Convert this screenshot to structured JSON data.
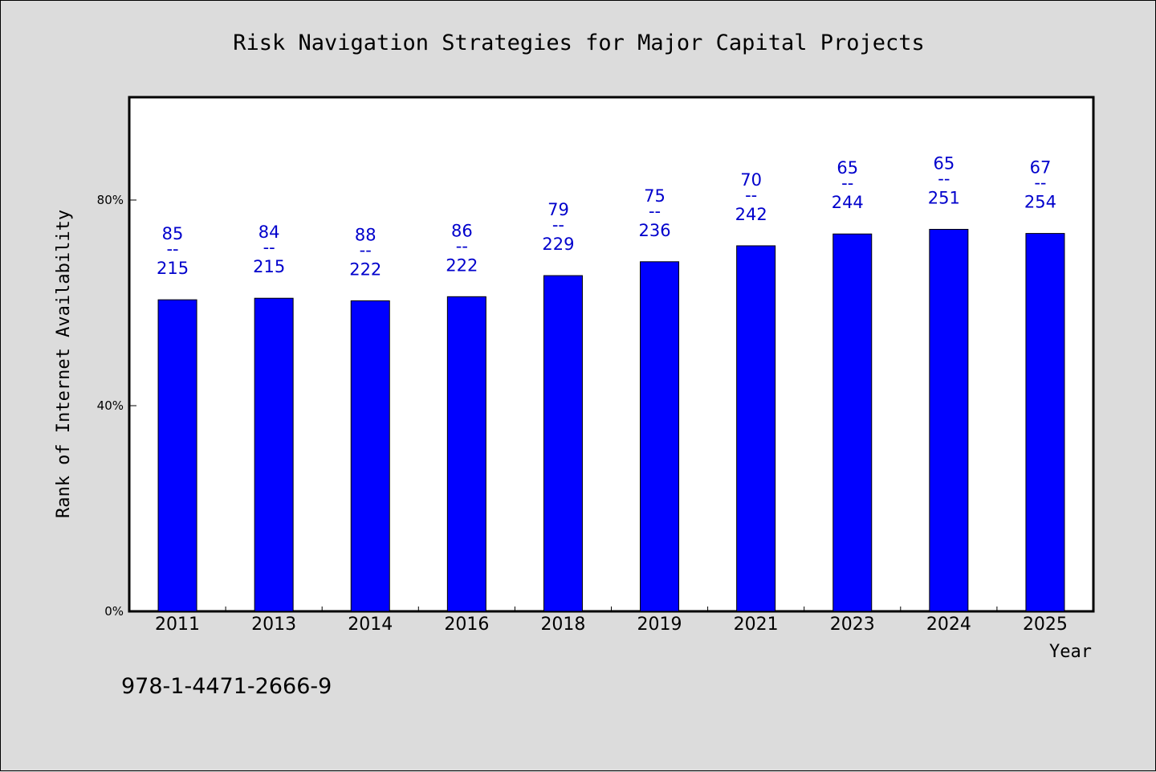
{
  "chart_data": {
    "type": "bar",
    "title": "Risk Navigation Strategies for Major Capital Projects",
    "xlabel": "Year",
    "ylabel": "Rank of Internet Availability",
    "categories": [
      "2011",
      "2013",
      "2014",
      "2016",
      "2018",
      "2019",
      "2021",
      "2023",
      "2024",
      "2025"
    ],
    "series": [
      {
        "values": [
          60.6,
          60.9,
          60.4,
          61.2,
          65.3,
          68.0,
          71.1,
          73.4,
          74.3,
          73.5
        ],
        "color": "#0000ff"
      }
    ],
    "data_labels": [
      {
        "top": "85",
        "sep": "--",
        "bottom": "215"
      },
      {
        "top": "84",
        "sep": "--",
        "bottom": "215"
      },
      {
        "top": "88",
        "sep": "--",
        "bottom": "222"
      },
      {
        "top": "86",
        "sep": "--",
        "bottom": "222"
      },
      {
        "top": "79",
        "sep": "--",
        "bottom": "229"
      },
      {
        "top": "75",
        "sep": "--",
        "bottom": "236"
      },
      {
        "top": "70",
        "sep": "--",
        "bottom": "242"
      },
      {
        "top": "65",
        "sep": "--",
        "bottom": "244"
      },
      {
        "top": "65",
        "sep": "--",
        "bottom": "251"
      },
      {
        "top": "67",
        "sep": "--",
        "bottom": "254"
      }
    ],
    "ylim": [
      0,
      100
    ],
    "yticks": [
      {
        "value": 0,
        "label": "0%"
      },
      {
        "value": 40,
        "label": "40%"
      },
      {
        "value": 80,
        "label": "80%"
      }
    ],
    "grid": false,
    "legend": "none",
    "label_color": "#0000cc"
  },
  "footer_text": "978-1-4471-2666-9"
}
